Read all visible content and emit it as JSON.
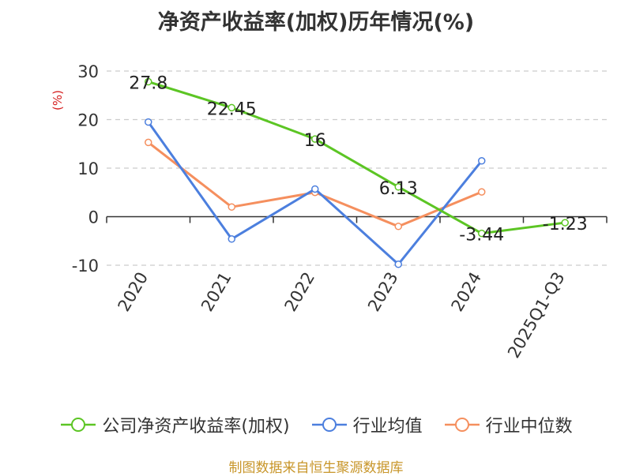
{
  "title": "净资产收益率(加权)历年情况(%)",
  "footer": "制图数据来自恒生聚源数据库",
  "chart_data": {
    "type": "line",
    "title": "净资产收益率(加权)历年情况(%)",
    "ylabel": "(%)",
    "categories": [
      "2020",
      "2021",
      "2022",
      "2023",
      "2024",
      "2025Q1-Q3"
    ],
    "ylim": [
      -10,
      30
    ],
    "yticks": [
      30,
      20,
      10,
      0,
      -10
    ],
    "grid": true,
    "legend_position": "bottom",
    "series": [
      {
        "name": "公司净资产收益率(加权)",
        "color": "#5cc524",
        "values": [
          27.8,
          22.45,
          16,
          6.13,
          -3.44,
          -1.23
        ],
        "labels": [
          "27.8",
          "22.45",
          "16",
          "6.13",
          "-3.44",
          "-1.23"
        ]
      },
      {
        "name": "行业均值",
        "color": "#4c7fde",
        "values": [
          19.5,
          -4.6,
          5.7,
          -9.8,
          11.5,
          null
        ]
      },
      {
        "name": "行业中位数",
        "color": "#f58f5e",
        "values": [
          15.3,
          2.0,
          5.0,
          -2.0,
          5.1,
          null
        ]
      }
    ]
  }
}
